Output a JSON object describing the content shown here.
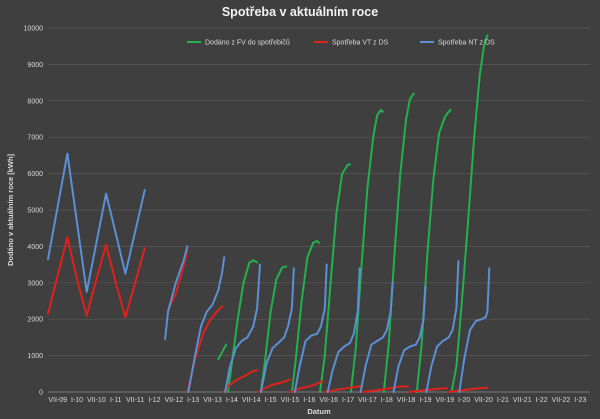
{
  "chart_data": {
    "type": "line",
    "title": "Spotřeba v aktuálním roce",
    "xlabel": "Datum",
    "ylabel": "Dodáno v aktuálním roce [kWh]",
    "ylim": [
      0,
      10000
    ],
    "yticks": [
      0,
      1000,
      2000,
      3000,
      4000,
      5000,
      6000,
      7000,
      8000,
      9000,
      10000
    ],
    "xlim": [
      0,
      28
    ],
    "xticks": [
      "VII-09",
      "I-10",
      "VII-10",
      "I-11",
      "VII-11",
      "I-12",
      "VII-12",
      "I-13",
      "VII-13",
      "I-14",
      "VII-14",
      "I-15",
      "VII-15",
      "I-16",
      "VII-16",
      "I-17",
      "VII-17",
      "I-18",
      "VII-18",
      "I-19",
      "VII-19",
      "I-20",
      "VII-20",
      "I-21",
      "VII-21",
      "I-22",
      "VII-22",
      "I-23"
    ],
    "grid": "horizontal",
    "legend_position": "top-center",
    "series": [
      {
        "name": "Dodáno z FV do spotřebičů",
        "color": "#22b14c",
        "segments": [
          [
            [
              8.8,
              900
            ],
            [
              9.2,
              1300
            ]
          ],
          [
            [
              9.3,
              0
            ],
            [
              9.5,
              800
            ],
            [
              9.8,
              2000
            ],
            [
              10.1,
              3000
            ],
            [
              10.4,
              3550
            ],
            [
              10.6,
              3620
            ],
            [
              10.8,
              3560
            ]
          ],
          [
            [
              11.0,
              0
            ],
            [
              11.2,
              800
            ],
            [
              11.5,
              2200
            ],
            [
              11.8,
              3100
            ],
            [
              12.1,
              3420
            ],
            [
              12.3,
              3450
            ]
          ],
          [
            [
              12.6,
              0
            ],
            [
              12.8,
              900
            ],
            [
              13.1,
              2500
            ],
            [
              13.4,
              3700
            ],
            [
              13.7,
              4100
            ],
            [
              13.9,
              4150
            ],
            [
              14.0,
              4100
            ]
          ],
          [
            [
              14.05,
              0
            ],
            [
              14.3,
              1000
            ],
            [
              14.6,
              3000
            ],
            [
              14.9,
              4900
            ],
            [
              15.2,
              6000
            ],
            [
              15.5,
              6250
            ],
            [
              15.6,
              6250
            ]
          ],
          [
            [
              15.65,
              0
            ],
            [
              15.9,
              1200
            ],
            [
              16.2,
              3500
            ],
            [
              16.5,
              5600
            ],
            [
              16.8,
              7000
            ],
            [
              17.0,
              7600
            ],
            [
              17.2,
              7750
            ],
            [
              17.3,
              7700
            ]
          ],
          [
            [
              17.35,
              0
            ],
            [
              17.6,
              1300
            ],
            [
              17.9,
              3800
            ],
            [
              18.2,
              6000
            ],
            [
              18.5,
              7500
            ],
            [
              18.7,
              8050
            ],
            [
              18.9,
              8200
            ]
          ],
          [
            [
              19.05,
              0
            ],
            [
              19.3,
              1300
            ],
            [
              19.6,
              3800
            ],
            [
              19.9,
              5800
            ],
            [
              20.2,
              7100
            ],
            [
              20.5,
              7550
            ],
            [
              20.7,
              7700
            ],
            [
              20.8,
              7750
            ]
          ],
          [
            [
              20.85,
              0
            ],
            [
              21.1,
              700
            ],
            [
              21.4,
              2600
            ],
            [
              21.7,
              4700
            ],
            [
              22.0,
              6900
            ],
            [
              22.3,
              8700
            ],
            [
              22.55,
              9600
            ],
            [
              22.7,
              9800
            ]
          ]
        ]
      },
      {
        "name": "Spotřeba VT z DS",
        "color": "#e0201b",
        "segments": [
          [
            [
              0,
              2150
            ],
            [
              0.5,
              3200
            ],
            [
              1,
              4250
            ],
            [
              1.5,
              3100
            ],
            [
              2,
              2100
            ],
            [
              2.5,
              3100
            ],
            [
              3,
              4050
            ],
            [
              3.5,
              3000
            ],
            [
              4,
              2050
            ],
            [
              4.5,
              3000
            ],
            [
              5,
              3950
            ]
          ],
          [
            [
              6.2,
              2250
            ],
            [
              6.6,
              2700
            ],
            [
              7.0,
              3450
            ],
            [
              7.2,
              3900
            ]
          ],
          [
            [
              7.2,
              0
            ],
            [
              7.6,
              900
            ],
            [
              8.0,
              1600
            ],
            [
              8.4,
              2000
            ],
            [
              8.8,
              2250
            ],
            [
              9.0,
              2350
            ]
          ],
          [
            [
              9.05,
              0
            ],
            [
              9.4,
              200
            ],
            [
              9.8,
              350
            ],
            [
              10.2,
              450
            ],
            [
              10.5,
              550
            ],
            [
              10.8,
              600
            ]
          ],
          [
            [
              10.85,
              0
            ],
            [
              11.2,
              100
            ],
            [
              11.6,
              200
            ],
            [
              12.0,
              250
            ],
            [
              12.3,
              300
            ],
            [
              12.5,
              350
            ]
          ],
          [
            [
              12.55,
              0
            ],
            [
              13.0,
              100
            ],
            [
              13.5,
              150
            ],
            [
              14.0,
              250
            ],
            [
              14.2,
              300
            ]
          ],
          [
            [
              14.25,
              0
            ],
            [
              14.8,
              50
            ],
            [
              15.4,
              100
            ],
            [
              16.0,
              150
            ],
            [
              16.2,
              150
            ]
          ],
          [
            [
              16.25,
              0
            ],
            [
              17.0,
              50
            ],
            [
              17.6,
              100
            ],
            [
              18.2,
              150
            ],
            [
              18.6,
              150
            ]
          ],
          [
            [
              18.65,
              0
            ],
            [
              19.4,
              50
            ],
            [
              20.0,
              80
            ],
            [
              20.4,
              100
            ],
            [
              20.6,
              100
            ]
          ],
          [
            [
              20.65,
              0
            ],
            [
              21.4,
              50
            ],
            [
              22.0,
              90
            ],
            [
              22.7,
              120
            ]
          ]
        ]
      },
      {
        "name": "Spotřeba NT z DS",
        "color": "#5b8fd6",
        "segments": [
          [
            [
              0,
              3650
            ],
            [
              0.5,
              5100
            ],
            [
              1,
              6550
            ],
            [
              1.5,
              4650
            ],
            [
              2,
              2750
            ],
            [
              2.5,
              4100
            ],
            [
              3,
              5450
            ],
            [
              3.5,
              4350
            ],
            [
              4,
              3250
            ],
            [
              4.5,
              4400
            ],
            [
              5,
              5550
            ]
          ],
          [
            [
              6.05,
              1450
            ],
            [
              6.2,
              2200
            ],
            [
              6.6,
              3000
            ],
            [
              7.0,
              3600
            ],
            [
              7.2,
              4000
            ]
          ],
          [
            [
              7.25,
              0
            ],
            [
              7.6,
              1000
            ],
            [
              7.9,
              1800
            ],
            [
              8.2,
              2200
            ],
            [
              8.5,
              2400
            ],
            [
              8.8,
              2800
            ],
            [
              9.0,
              3300
            ],
            [
              9.1,
              3700
            ]
          ],
          [
            [
              9.15,
              0
            ],
            [
              9.4,
              700
            ],
            [
              9.7,
              1200
            ],
            [
              10.0,
              1400
            ],
            [
              10.3,
              1500
            ],
            [
              10.6,
              1800
            ],
            [
              10.8,
              2300
            ],
            [
              10.95,
              3500
            ]
          ],
          [
            [
              11.0,
              0
            ],
            [
              11.3,
              800
            ],
            [
              11.6,
              1200
            ],
            [
              11.9,
              1350
            ],
            [
              12.2,
              1500
            ],
            [
              12.4,
              1800
            ],
            [
              12.6,
              2300
            ],
            [
              12.7,
              3400
            ]
          ],
          [
            [
              12.75,
              0
            ],
            [
              13.0,
              700
            ],
            [
              13.3,
              1400
            ],
            [
              13.6,
              1550
            ],
            [
              13.9,
              1600
            ],
            [
              14.1,
              1800
            ],
            [
              14.3,
              2300
            ],
            [
              14.4,
              3500
            ]
          ],
          [
            [
              14.45,
              0
            ],
            [
              14.7,
              600
            ],
            [
              15.0,
              1100
            ],
            [
              15.3,
              1250
            ],
            [
              15.6,
              1350
            ],
            [
              15.8,
              1600
            ],
            [
              16.0,
              2200
            ],
            [
              16.1,
              3400
            ]
          ],
          [
            [
              16.15,
              0
            ],
            [
              16.4,
              700
            ],
            [
              16.7,
              1300
            ],
            [
              17.0,
              1400
            ],
            [
              17.3,
              1500
            ],
            [
              17.5,
              1700
            ],
            [
              17.7,
              2200
            ],
            [
              17.8,
              3000
            ]
          ],
          [
            [
              17.85,
              0
            ],
            [
              18.1,
              700
            ],
            [
              18.4,
              1150
            ],
            [
              18.7,
              1250
            ],
            [
              19.0,
              1300
            ],
            [
              19.2,
              1500
            ],
            [
              19.4,
              2000
            ],
            [
              19.5,
              2900
            ]
          ],
          [
            [
              19.55,
              0
            ],
            [
              19.8,
              700
            ],
            [
              20.1,
              1250
            ],
            [
              20.4,
              1400
            ],
            [
              20.7,
              1500
            ],
            [
              20.9,
              1700
            ],
            [
              21.1,
              2300
            ],
            [
              21.2,
              3600
            ]
          ],
          [
            [
              21.25,
              0
            ],
            [
              21.5,
              900
            ],
            [
              21.8,
              1700
            ],
            [
              22.1,
              1950
            ],
            [
              22.4,
              2000
            ],
            [
              22.6,
              2050
            ],
            [
              22.7,
              2200
            ],
            [
              22.8,
              3400
            ]
          ]
        ]
      }
    ]
  }
}
